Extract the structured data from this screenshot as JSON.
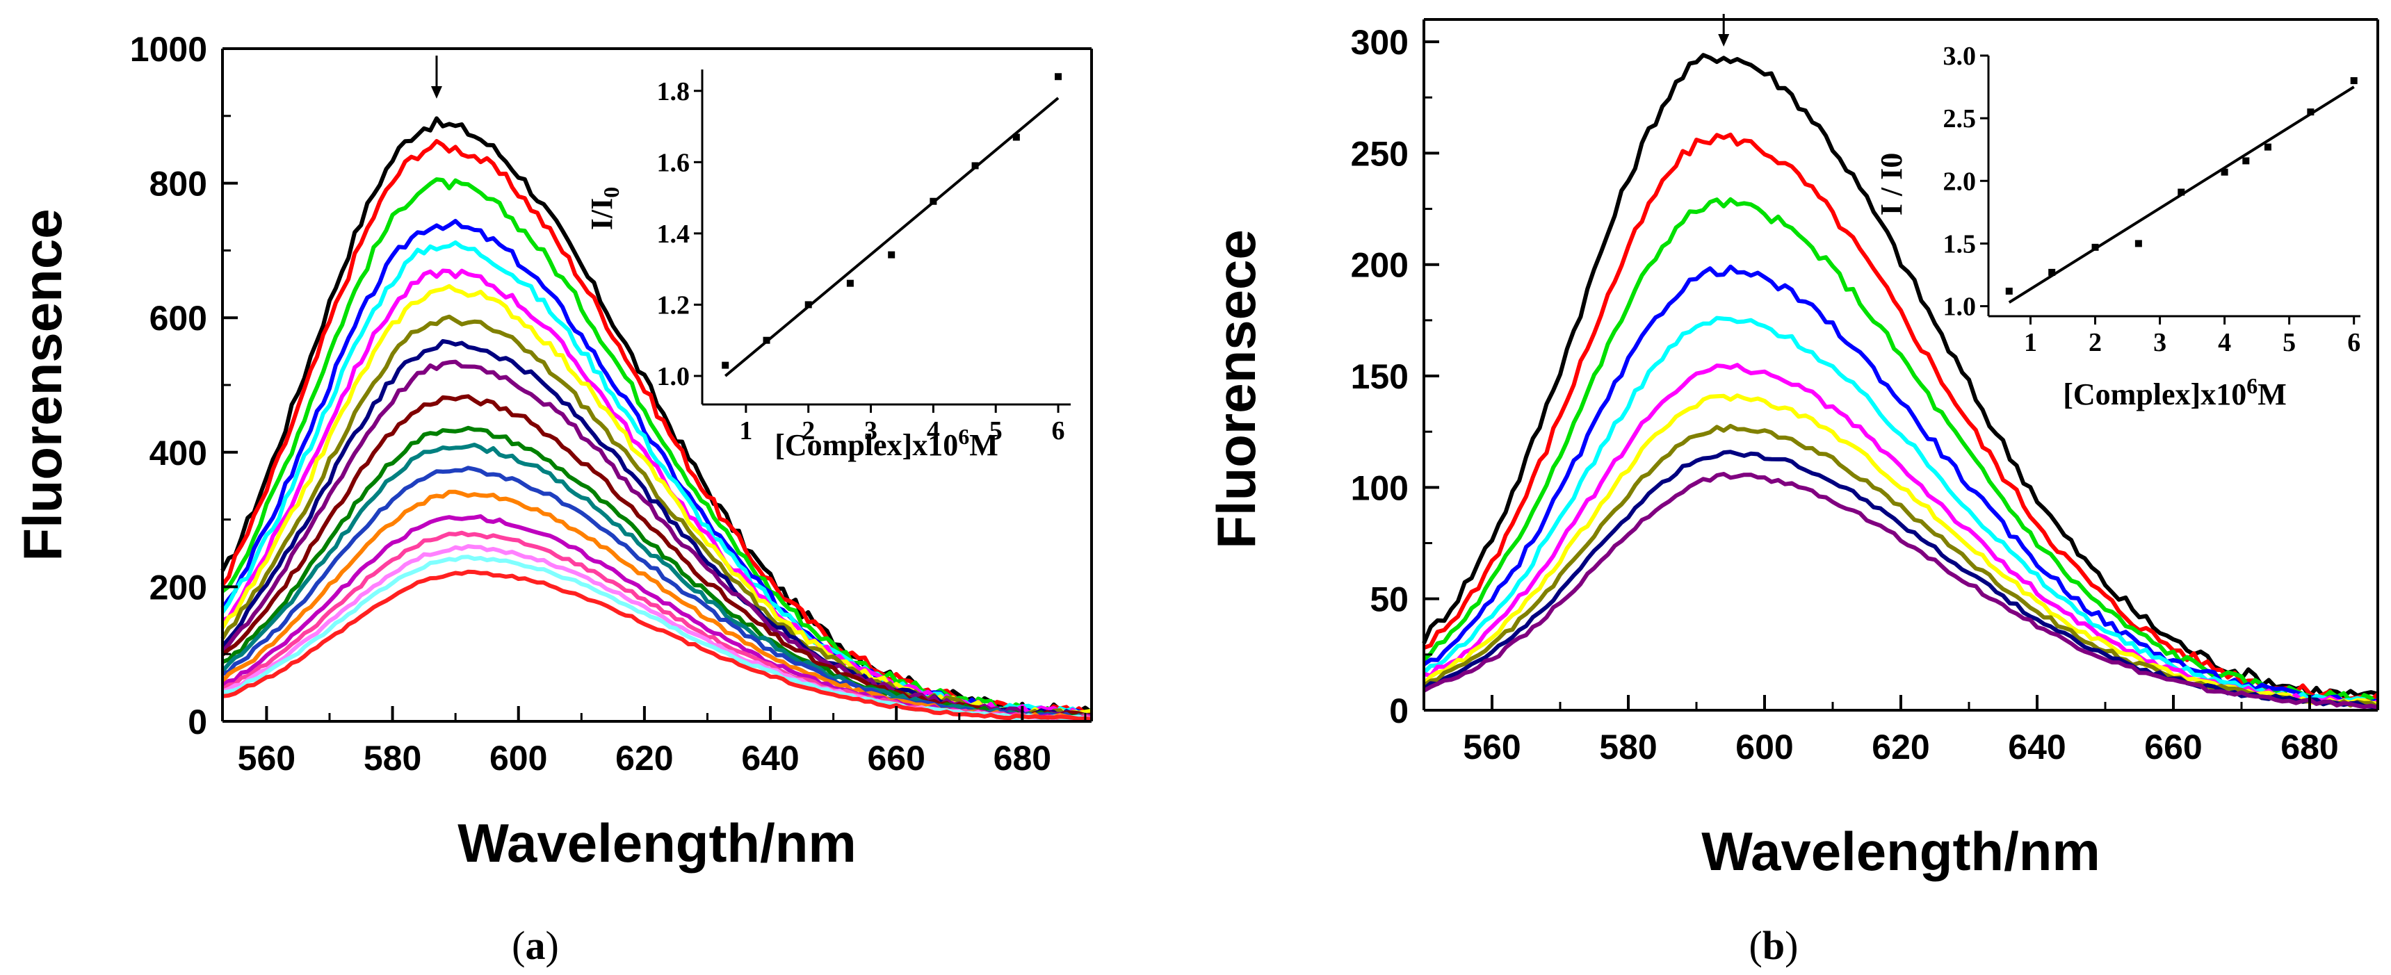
{
  "chart_data": [
    {
      "panel": "a",
      "type": "line",
      "caption": "a",
      "xlabel": "Wavelength/nm",
      "ylabel": "Fluorensence",
      "xlim": [
        553,
        691
      ],
      "ylim": [
        0,
        1000
      ],
      "xticks": [
        560,
        580,
        600,
        620,
        640,
        660,
        680
      ],
      "yticks": [
        0,
        200,
        400,
        600,
        800,
        1000
      ],
      "arrow_x": 587,
      "series_peaks": [
        877,
        845,
        790,
        730,
        700,
        660,
        635,
        590,
        555,
        525,
        475,
        430,
        405,
        370,
        335,
        300,
        275,
        255,
        240,
        218
      ],
      "series_colors": [
        "#000000",
        "#ff0000",
        "#00e000",
        "#0000ff",
        "#00ffff",
        "#ff00ff",
        "#ffff00",
        "#808000",
        "#000080",
        "#800080",
        "#800000",
        "#008000",
        "#008080",
        "#1f3fbf",
        "#ff8000",
        "#bf00bf",
        "#ff3f9f",
        "#ff80ff",
        "#80ffff",
        "#ff2020"
      ],
      "peak_wavelength": 587,
      "inset": {
        "xlabel": "[Complex]x10",
        "xlabel_exp": "6",
        "xlabel_unit": "M",
        "ylabel": "I/I",
        "ylabel_sub": "0",
        "xlim": [
          0.3,
          6.2
        ],
        "ylim": [
          0.92,
          1.86
        ],
        "xticks": [
          1,
          2,
          3,
          4,
          5,
          6
        ],
        "yticks": [
          "1.0",
          "1.2",
          "1.4",
          "1.6",
          "1.8"
        ],
        "x": [
          0.67,
          1.33,
          2.0,
          2.67,
          3.33,
          4.0,
          4.67,
          5.33,
          6.0
        ],
        "y": [
          1.03,
          1.1,
          1.2,
          1.26,
          1.34,
          1.49,
          1.59,
          1.67,
          1.84
        ],
        "fit": {
          "x": [
            0.67,
            6.0
          ],
          "y": [
            1.0,
            1.78
          ]
        }
      }
    },
    {
      "panel": "b",
      "type": "line",
      "caption": "b",
      "xlabel": "Wavelength/nm",
      "ylabel": "Fluorensece",
      "xlim": [
        550,
        690
      ],
      "ylim": [
        0,
        310
      ],
      "xticks": [
        560,
        580,
        600,
        620,
        640,
        660,
        680
      ],
      "yticks": [
        0,
        50,
        100,
        150,
        200,
        250,
        300
      ],
      "arrow_x": 594,
      "series_peaks": [
        290,
        254,
        225,
        195,
        173,
        152,
        139,
        125,
        114,
        104
      ],
      "series_colors": [
        "#000000",
        "#ff0000",
        "#00e000",
        "#0000ff",
        "#00ffff",
        "#ff00ff",
        "#ffff00",
        "#808000",
        "#000080",
        "#800080"
      ],
      "peak_wavelength": 593,
      "inset": {
        "xlabel": "[Complex]x10",
        "xlabel_exp": "6",
        "xlabel_unit": "M",
        "ylabel": "I / I0",
        "ylabel_sub": "",
        "xlim": [
          0.35,
          6.1
        ],
        "ylim": [
          0.92,
          3.0
        ],
        "xticks": [
          1,
          2,
          3,
          4,
          5,
          6
        ],
        "yticks": [
          "1.0",
          "1.5",
          "2.0",
          "2.5",
          "3.0"
        ],
        "x": [
          0.67,
          1.33,
          2.0,
          2.67,
          3.33,
          4.0,
          4.33,
          4.67,
          5.33,
          6.0
        ],
        "y": [
          1.12,
          1.27,
          1.47,
          1.5,
          1.91,
          2.07,
          2.16,
          2.27,
          2.55,
          2.8
        ],
        "fit": {
          "x": [
            0.67,
            6.0
          ],
          "y": [
            1.03,
            2.75
          ]
        }
      }
    }
  ]
}
